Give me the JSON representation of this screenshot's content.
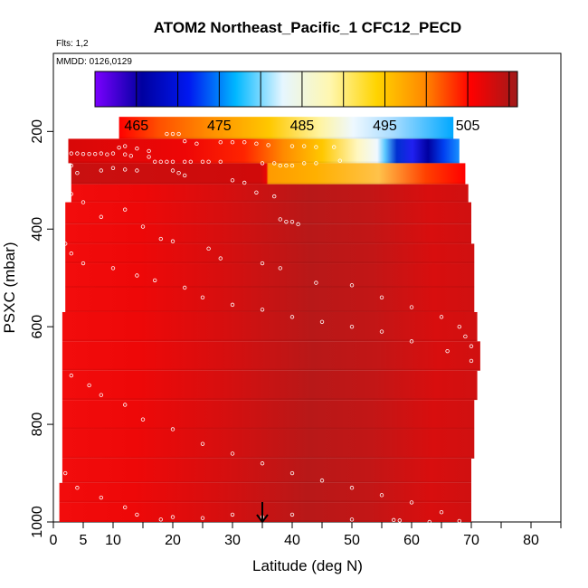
{
  "chart_data": {
    "type": "heatmap",
    "title": "ATOM2 Northeast_Pacific_1 CFC12_PECD",
    "note_flights": "Flts: 1,2",
    "note_dates": "MMDD: 0126,0129",
    "xlabel": "Latitude (deg N)",
    "ylabel": "PSXC (mbar)",
    "xlim": [
      0,
      85
    ],
    "ylim": [
      1000,
      40
    ],
    "y_inverted": true,
    "x_ticks": [
      0,
      5,
      10,
      20,
      30,
      40,
      50,
      60,
      70,
      80
    ],
    "y_ticks": [
      200,
      400,
      600,
      800,
      1000
    ],
    "colorbar": {
      "min": 460,
      "max": 511,
      "tick_values": [
        465,
        475,
        485,
        495,
        505
      ],
      "colors": [
        "#7b00ff",
        "#0000a0",
        "#0018f0",
        "#00b8ff",
        "#e6f6ff",
        "#fff7b0",
        "#ffd400",
        "#ff8a00",
        "#ff0000",
        "#a01a1a"
      ]
    },
    "marker_latitude": 35,
    "layers": [
      {
        "p_top": 170,
        "p_bot": 215,
        "lat_min": 11,
        "lat_max": 67,
        "profile": "gradient_high"
      },
      {
        "p_top": 215,
        "p_bot": 265,
        "lat_min": 2.5,
        "lat_max": 68,
        "profile": "gradient_mid"
      },
      {
        "p_top": 265,
        "p_bot": 308,
        "lat_min": 3,
        "lat_max": 69,
        "profile": "orange_band"
      },
      {
        "p_top": 308,
        "p_bot": 345,
        "lat_min": 3,
        "lat_max": 69.5,
        "profile": "red"
      },
      {
        "p_top": 345,
        "p_bot": 390,
        "lat_min": 2,
        "lat_max": 70,
        "profile": "red"
      },
      {
        "p_top": 390,
        "p_bot": 430,
        "lat_min": 2,
        "lat_max": 70,
        "profile": "red"
      },
      {
        "p_top": 430,
        "p_bot": 470,
        "lat_min": 2,
        "lat_max": 70.5,
        "profile": "red"
      },
      {
        "p_top": 470,
        "p_bot": 520,
        "lat_min": 2,
        "lat_max": 70.5,
        "profile": "red"
      },
      {
        "p_top": 520,
        "p_bot": 570,
        "lat_min": 2,
        "lat_max": 70.5,
        "profile": "red"
      },
      {
        "p_top": 570,
        "p_bot": 630,
        "lat_min": 1.5,
        "lat_max": 71,
        "profile": "red"
      },
      {
        "p_top": 630,
        "p_bot": 690,
        "lat_min": 1.5,
        "lat_max": 71.5,
        "profile": "red"
      },
      {
        "p_top": 690,
        "p_bot": 750,
        "lat_min": 1.5,
        "lat_max": 71,
        "profile": "red"
      },
      {
        "p_top": 750,
        "p_bot": 810,
        "lat_min": 1.5,
        "lat_max": 70.5,
        "profile": "red"
      },
      {
        "p_top": 810,
        "p_bot": 870,
        "lat_min": 1.5,
        "lat_max": 70.5,
        "profile": "red"
      },
      {
        "p_top": 870,
        "p_bot": 920,
        "lat_min": 1.5,
        "lat_max": 70,
        "profile": "red"
      },
      {
        "p_top": 920,
        "p_bot": 960,
        "lat_min": 1,
        "lat_max": 70,
        "profile": "red"
      },
      {
        "p_top": 960,
        "p_bot": 1000,
        "lat_min": 1,
        "lat_max": 70,
        "profile": "red"
      }
    ],
    "points": [
      [
        11,
        233
      ],
      [
        12,
        230
      ],
      [
        14,
        235
      ],
      [
        16,
        240
      ],
      [
        19,
        205
      ],
      [
        20,
        205
      ],
      [
        21,
        205
      ],
      [
        22,
        220
      ],
      [
        24,
        225
      ],
      [
        28,
        222
      ],
      [
        30,
        222
      ],
      [
        32,
        222
      ],
      [
        34,
        225
      ],
      [
        36,
        228
      ],
      [
        40,
        230
      ],
      [
        42,
        230
      ],
      [
        44,
        232
      ],
      [
        47,
        232
      ],
      [
        3,
        245
      ],
      [
        4,
        245
      ],
      [
        5,
        246
      ],
      [
        6,
        246
      ],
      [
        7,
        246
      ],
      [
        8,
        245
      ],
      [
        9,
        247
      ],
      [
        10,
        245
      ],
      [
        12,
        247
      ],
      [
        13,
        250
      ],
      [
        16,
        252
      ],
      [
        17,
        262
      ],
      [
        18,
        262
      ],
      [
        19,
        262
      ],
      [
        20,
        262
      ],
      [
        22,
        262
      ],
      [
        23,
        262
      ],
      [
        25,
        262
      ],
      [
        26,
        262
      ],
      [
        28,
        262
      ],
      [
        35,
        265
      ],
      [
        37,
        265
      ],
      [
        38,
        270
      ],
      [
        39,
        270
      ],
      [
        40,
        270
      ],
      [
        42,
        265
      ],
      [
        44,
        265
      ],
      [
        48,
        260
      ],
      [
        3,
        270
      ],
      [
        4,
        285
      ],
      [
        8,
        280
      ],
      [
        10,
        275
      ],
      [
        12,
        278
      ],
      [
        14,
        280
      ],
      [
        20,
        280
      ],
      [
        21,
        285
      ],
      [
        22,
        290
      ],
      [
        30,
        300
      ],
      [
        32,
        305
      ],
      [
        34,
        325
      ],
      [
        37,
        333
      ],
      [
        38,
        380
      ],
      [
        39,
        385
      ],
      [
        40,
        385
      ],
      [
        41,
        390
      ],
      [
        12,
        360
      ],
      [
        3,
        328
      ],
      [
        5,
        345
      ],
      [
        8,
        375
      ],
      [
        15,
        395
      ],
      [
        18,
        420
      ],
      [
        20,
        425
      ],
      [
        26,
        440
      ],
      [
        28,
        460
      ],
      [
        35,
        470
      ],
      [
        38,
        480
      ],
      [
        44,
        510
      ],
      [
        50,
        515
      ],
      [
        55,
        540
      ],
      [
        60,
        560
      ],
      [
        65,
        580
      ],
      [
        68,
        600
      ],
      [
        69,
        620
      ],
      [
        70,
        640
      ],
      [
        2,
        430
      ],
      [
        3,
        450
      ],
      [
        5,
        470
      ],
      [
        10,
        480
      ],
      [
        14,
        495
      ],
      [
        17,
        505
      ],
      [
        22,
        520
      ],
      [
        25,
        540
      ],
      [
        30,
        555
      ],
      [
        35,
        565
      ],
      [
        40,
        580
      ],
      [
        45,
        590
      ],
      [
        50,
        600
      ],
      [
        55,
        610
      ],
      [
        60,
        630
      ],
      [
        66,
        650
      ],
      [
        70,
        670
      ],
      [
        3,
        700
      ],
      [
        6,
        720
      ],
      [
        8,
        740
      ],
      [
        12,
        760
      ],
      [
        15,
        790
      ],
      [
        20,
        810
      ],
      [
        25,
        840
      ],
      [
        30,
        860
      ],
      [
        35,
        880
      ],
      [
        40,
        900
      ],
      [
        45,
        915
      ],
      [
        50,
        930
      ],
      [
        55,
        945
      ],
      [
        60,
        960
      ],
      [
        65,
        980
      ],
      [
        2,
        900
      ],
      [
        4,
        930
      ],
      [
        8,
        950
      ],
      [
        12,
        970
      ],
      [
        14,
        985
      ],
      [
        18,
        995
      ],
      [
        20,
        990
      ],
      [
        25,
        992
      ],
      [
        30,
        985
      ],
      [
        35,
        990
      ],
      [
        40,
        985
      ],
      [
        50,
        995
      ],
      [
        57,
        996
      ],
      [
        58,
        997
      ],
      [
        63,
        1000
      ],
      [
        68,
        998
      ]
    ]
  }
}
